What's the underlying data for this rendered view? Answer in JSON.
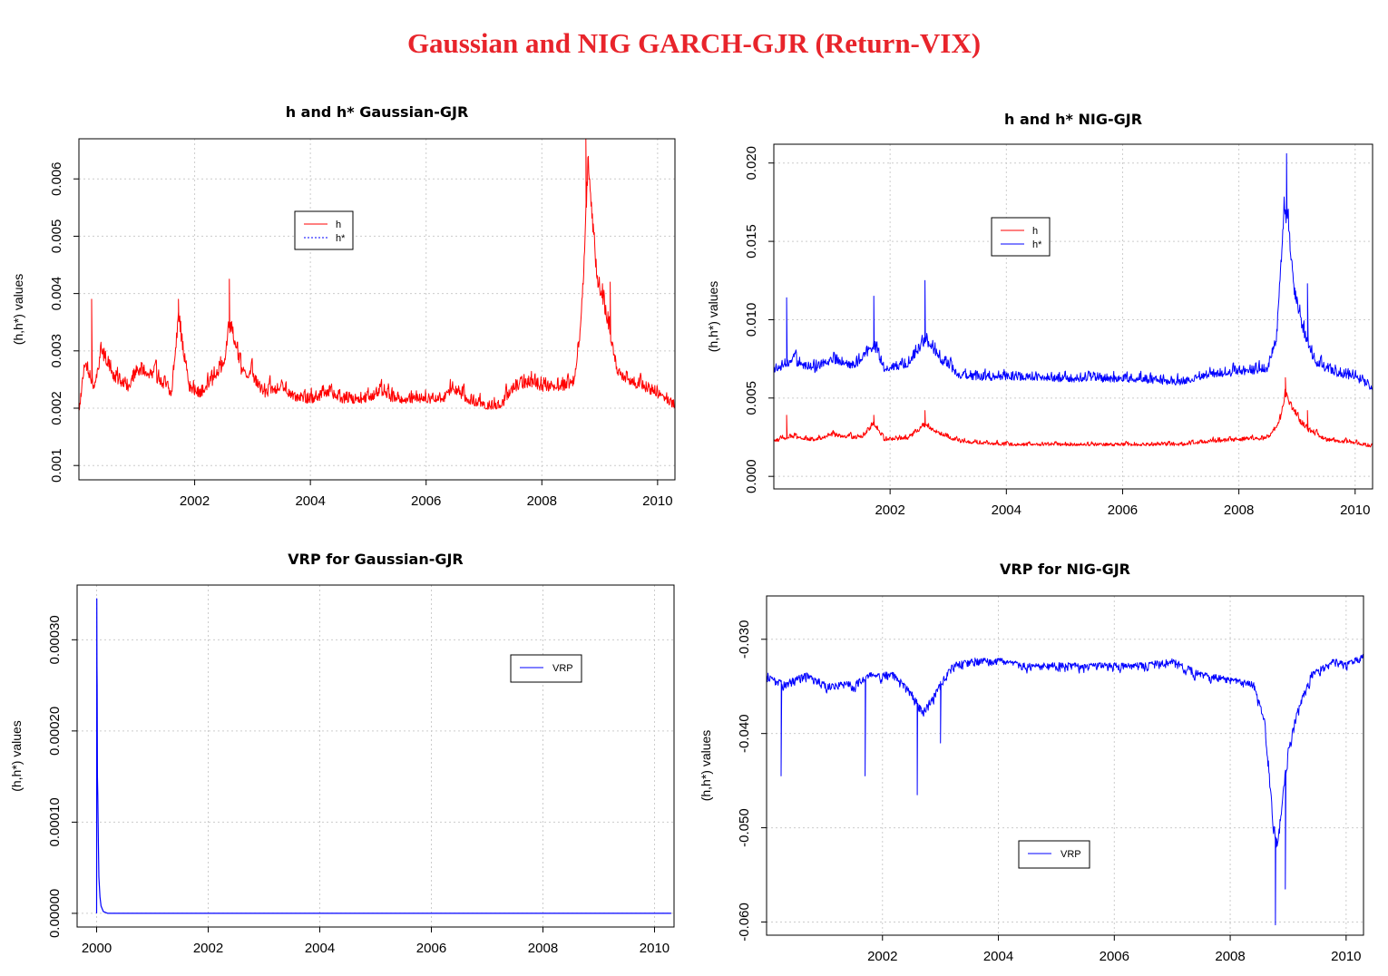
{
  "figure": {
    "title": "Gaussian and NIG GARCH-GJR (Return-VIX)",
    "colors": {
      "title": "#e8242b",
      "h": "#ff0000",
      "hstar": "#0000ff",
      "grid": "#cccccc"
    }
  },
  "chart_data": [
    {
      "type": "line",
      "title": "h and h* Gaussian-GJR",
      "xlabel": "",
      "ylabel": "(h,h*) values",
      "xlim": [
        2000.0,
        2010.3
      ],
      "ylim": [
        0.00075,
        0.0067
      ],
      "x_ticks": [
        2002,
        2004,
        2006,
        2008,
        2010
      ],
      "y_ticks": [
        0.001,
        0.002,
        0.003,
        0.004,
        0.005,
        0.006
      ],
      "y_tick_labels": [
        "0.001",
        "0.002",
        "0.003",
        "0.004",
        "0.005",
        "0.006"
      ],
      "grid": true,
      "legend": {
        "position": "top-center",
        "entries": [
          "h",
          "h*"
        ]
      },
      "series": [
        {
          "name": "h",
          "color": "#ff0000",
          "noise": 0.00035,
          "points": [
            [
              2000.0,
              0.002
            ],
            [
              2000.1,
              0.0028
            ],
            [
              2000.25,
              0.0024
            ],
            [
              2000.4,
              0.003
            ],
            [
              2000.6,
              0.0026
            ],
            [
              2000.85,
              0.0024
            ],
            [
              2001.0,
              0.0027
            ],
            [
              2001.3,
              0.0026
            ],
            [
              2001.6,
              0.0023
            ],
            [
              2001.72,
              0.0036
            ],
            [
              2001.9,
              0.0024
            ],
            [
              2002.1,
              0.0023
            ],
            [
              2002.3,
              0.0025
            ],
            [
              2002.5,
              0.0028
            ],
            [
              2002.62,
              0.0035
            ],
            [
              2002.8,
              0.0027
            ],
            [
              2003.0,
              0.0026
            ],
            [
              2003.2,
              0.0023
            ],
            [
              2003.5,
              0.0024
            ],
            [
              2003.8,
              0.0022
            ],
            [
              2004.0,
              0.0022
            ],
            [
              2004.3,
              0.0023
            ],
            [
              2004.6,
              0.0022
            ],
            [
              2004.9,
              0.0022
            ],
            [
              2005.2,
              0.0023
            ],
            [
              2005.5,
              0.0022
            ],
            [
              2005.8,
              0.0022
            ],
            [
              2006.0,
              0.0022
            ],
            [
              2006.3,
              0.0022
            ],
            [
              2006.45,
              0.0024
            ],
            [
              2006.7,
              0.0022
            ],
            [
              2007.0,
              0.0021
            ],
            [
              2007.3,
              0.0021
            ],
            [
              2007.5,
              0.0024
            ],
            [
              2007.8,
              0.0025
            ],
            [
              2008.0,
              0.0024
            ],
            [
              2008.3,
              0.0024
            ],
            [
              2008.55,
              0.0025
            ],
            [
              2008.68,
              0.0035
            ],
            [
              2008.75,
              0.005
            ],
            [
              2008.8,
              0.0062
            ],
            [
              2008.85,
              0.0056
            ],
            [
              2008.95,
              0.0043
            ],
            [
              2009.05,
              0.0039
            ],
            [
              2009.15,
              0.0035
            ],
            [
              2009.3,
              0.0027
            ],
            [
              2009.5,
              0.0025
            ],
            [
              2009.8,
              0.0024
            ],
            [
              2010.0,
              0.0023
            ],
            [
              2010.3,
              0.0021
            ]
          ],
          "peaks": [
            [
              2000.22,
              0.0039
            ],
            [
              2001.72,
              0.0039
            ],
            [
              2002.6,
              0.00425
            ],
            [
              2008.76,
              0.0067
            ],
            [
              2009.18,
              0.0042
            ]
          ]
        },
        {
          "name": "h*",
          "color": "#0000ff",
          "points": []
        }
      ]
    },
    {
      "type": "line",
      "title": "h and h* NIG-GJR",
      "xlabel": "",
      "ylabel": "(h,h*) values",
      "xlim": [
        2000.0,
        2010.3
      ],
      "ylim": [
        -0.0008,
        0.0212
      ],
      "x_ticks": [
        2002,
        2004,
        2006,
        2008,
        2010
      ],
      "y_ticks": [
        0.0,
        0.005,
        0.01,
        0.015,
        0.02
      ],
      "y_tick_labels": [
        "0.000",
        "0.005",
        "0.010",
        "0.015",
        "0.020"
      ],
      "grid": true,
      "legend": {
        "position": "top-center",
        "entries": [
          "h",
          "h*"
        ]
      },
      "series": [
        {
          "name": "h",
          "color": "#ff0000",
          "noise": 0.00045,
          "points": [
            [
              2000.0,
              0.0023
            ],
            [
              2000.3,
              0.0026
            ],
            [
              2000.7,
              0.0024
            ],
            [
              2001.0,
              0.0027
            ],
            [
              2001.5,
              0.0025
            ],
            [
              2001.72,
              0.0034
            ],
            [
              2001.9,
              0.0024
            ],
            [
              2002.3,
              0.0025
            ],
            [
              2002.6,
              0.0033
            ],
            [
              2002.9,
              0.0027
            ],
            [
              2003.2,
              0.0023
            ],
            [
              2003.6,
              0.0022
            ],
            [
              2004.0,
              0.0021
            ],
            [
              2004.5,
              0.0021
            ],
            [
              2005.0,
              0.0021
            ],
            [
              2005.5,
              0.0021
            ],
            [
              2006.0,
              0.0021
            ],
            [
              2006.5,
              0.0021
            ],
            [
              2007.0,
              0.0021
            ],
            [
              2007.5,
              0.0023
            ],
            [
              2008.0,
              0.0024
            ],
            [
              2008.5,
              0.0025
            ],
            [
              2008.7,
              0.0035
            ],
            [
              2008.8,
              0.0052
            ],
            [
              2008.9,
              0.0045
            ],
            [
              2009.05,
              0.0035
            ],
            [
              2009.2,
              0.003
            ],
            [
              2009.5,
              0.0024
            ],
            [
              2010.0,
              0.0022
            ],
            [
              2010.3,
              0.002
            ]
          ],
          "peaks": [
            [
              2000.22,
              0.0039
            ],
            [
              2001.72,
              0.0039
            ],
            [
              2002.6,
              0.0042
            ],
            [
              2008.8,
              0.0063
            ],
            [
              2009.18,
              0.0042
            ]
          ]
        },
        {
          "name": "h*",
          "color": "#0000ff",
          "noise": 0.0011,
          "points": [
            [
              2000.0,
              0.0068
            ],
            [
              2000.3,
              0.0075
            ],
            [
              2000.7,
              0.007
            ],
            [
              2001.0,
              0.0076
            ],
            [
              2001.4,
              0.0072
            ],
            [
              2001.72,
              0.0085
            ],
            [
              2001.9,
              0.007
            ],
            [
              2002.3,
              0.0073
            ],
            [
              2002.6,
              0.0088
            ],
            [
              2002.9,
              0.0075
            ],
            [
              2003.2,
              0.0066
            ],
            [
              2003.6,
              0.0065
            ],
            [
              2004.0,
              0.0065
            ],
            [
              2004.5,
              0.0065
            ],
            [
              2005.0,
              0.0064
            ],
            [
              2005.5,
              0.0064
            ],
            [
              2006.0,
              0.0064
            ],
            [
              2006.5,
              0.0063
            ],
            [
              2007.0,
              0.0062
            ],
            [
              2007.5,
              0.0067
            ],
            [
              2008.0,
              0.0068
            ],
            [
              2008.5,
              0.007
            ],
            [
              2008.65,
              0.009
            ],
            [
              2008.78,
              0.017
            ],
            [
              2008.85,
              0.016
            ],
            [
              2008.95,
              0.012
            ],
            [
              2009.1,
              0.0095
            ],
            [
              2009.3,
              0.0075
            ],
            [
              2009.6,
              0.0068
            ],
            [
              2010.0,
              0.0065
            ],
            [
              2010.3,
              0.0058
            ]
          ],
          "peaks": [
            [
              2000.22,
              0.0114
            ],
            [
              2001.72,
              0.0115
            ],
            [
              2002.6,
              0.0125
            ],
            [
              2008.82,
              0.0206
            ],
            [
              2009.18,
              0.0123
            ]
          ]
        }
      ]
    },
    {
      "type": "line",
      "title": "VRP for Gaussian-GJR",
      "xlabel": "",
      "ylabel": "(h,h*) values",
      "xlim": [
        1999.65,
        2010.35
      ],
      "ylim": [
        -1.5e-05,
        0.00036
      ],
      "x_ticks": [
        2000,
        2002,
        2004,
        2006,
        2008,
        2010
      ],
      "y_ticks": [
        0.0,
        0.0001,
        0.0002,
        0.0003
      ],
      "y_tick_labels": [
        "0.00000",
        "0.00010",
        "0.00020",
        "0.00030"
      ],
      "grid": true,
      "legend": {
        "position": "top-right",
        "entries": [
          "VRP"
        ]
      },
      "series": [
        {
          "name": "VRP",
          "color": "#0000ff",
          "points": [
            [
              2000.0,
              0.0
            ],
            [
              2000.003,
              0.000345
            ],
            [
              2000.006,
              0.00027
            ],
            [
              2000.01,
              0.00025
            ],
            [
              2000.015,
              0.00015
            ],
            [
              2000.02,
              0.00013
            ],
            [
              2000.03,
              8e-05
            ],
            [
              2000.04,
              4e-05
            ],
            [
              2000.06,
              1.8e-05
            ],
            [
              2000.08,
              8e-06
            ],
            [
              2000.12,
              2e-06
            ],
            [
              2000.2,
              0.0
            ],
            [
              2010.3,
              0.0
            ]
          ]
        }
      ]
    },
    {
      "type": "line",
      "title": "VRP for  NIG-GJR",
      "xlabel": "",
      "ylabel": "(h,h*) values",
      "xlim": [
        2000.0,
        2010.3
      ],
      "ylim": [
        -0.0614,
        -0.0254
      ],
      "x_ticks": [
        2002,
        2004,
        2006,
        2008,
        2010
      ],
      "y_ticks": [
        -0.06,
        -0.05,
        -0.04,
        -0.03
      ],
      "y_tick_labels": [
        "-0.060",
        "-0.050",
        "-0.040",
        "-0.030"
      ],
      "grid": true,
      "legend": {
        "position": "bottom-center",
        "entries": [
          "VRP"
        ]
      },
      "series": [
        {
          "name": "VRP",
          "color": "#0000ff",
          "noise": 0.0015,
          "points": [
            [
              2000.0,
              -0.034
            ],
            [
              2000.3,
              -0.035
            ],
            [
              2000.7,
              -0.034
            ],
            [
              2001.0,
              -0.035
            ],
            [
              2001.5,
              -0.035
            ],
            [
              2001.8,
              -0.034
            ],
            [
              2002.2,
              -0.034
            ],
            [
              2002.5,
              -0.036
            ],
            [
              2002.7,
              -0.038
            ],
            [
              2002.9,
              -0.036
            ],
            [
              2003.2,
              -0.033
            ],
            [
              2003.6,
              -0.0325
            ],
            [
              2004.0,
              -0.0325
            ],
            [
              2004.5,
              -0.033
            ],
            [
              2005.0,
              -0.033
            ],
            [
              2005.5,
              -0.033
            ],
            [
              2006.0,
              -0.033
            ],
            [
              2006.5,
              -0.033
            ],
            [
              2007.0,
              -0.0325
            ],
            [
              2007.5,
              -0.034
            ],
            [
              2008.0,
              -0.0345
            ],
            [
              2008.4,
              -0.035
            ],
            [
              2008.6,
              -0.039
            ],
            [
              2008.75,
              -0.05
            ],
            [
              2008.82,
              -0.052
            ],
            [
              2008.9,
              -0.047
            ],
            [
              2009.0,
              -0.042
            ],
            [
              2009.15,
              -0.038
            ],
            [
              2009.4,
              -0.034
            ],
            [
              2009.8,
              -0.0325
            ],
            [
              2010.0,
              -0.033
            ],
            [
              2010.3,
              -0.032
            ]
          ],
          "troughs": [
            [
              2000.25,
              -0.0445
            ],
            [
              2001.7,
              -0.0445
            ],
            [
              2002.6,
              -0.0465
            ],
            [
              2003.0,
              -0.041
            ],
            [
              2008.78,
              -0.0603
            ],
            [
              2008.95,
              -0.0565
            ]
          ]
        }
      ]
    }
  ]
}
